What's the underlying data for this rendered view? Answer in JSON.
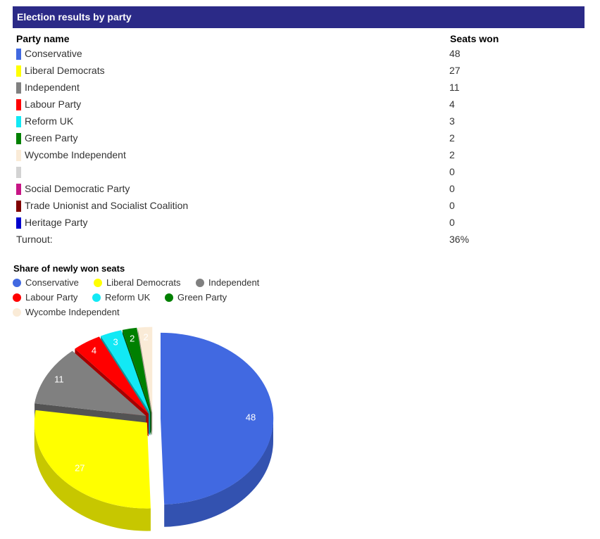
{
  "header": {
    "title": "Election results by party"
  },
  "table": {
    "col_party": "Party name",
    "col_seats": "Seats won",
    "rows": [
      {
        "name": "Conservative",
        "seats": "48",
        "color": "#4169e1"
      },
      {
        "name": "Liberal Democrats",
        "seats": "27",
        "color": "#ffff00"
      },
      {
        "name": "Independent",
        "seats": "11",
        "color": "#808080"
      },
      {
        "name": "Labour Party",
        "seats": "4",
        "color": "#ff0000"
      },
      {
        "name": "Reform UK",
        "seats": "3",
        "color": "#12e9f5"
      },
      {
        "name": "Green Party",
        "seats": "2",
        "color": "#008000"
      },
      {
        "name": "Wycombe Independent",
        "seats": "2",
        "color": "#faebd7"
      },
      {
        "name": "",
        "seats": "0",
        "color": "#d3d3d3"
      },
      {
        "name": "Social Democratic Party",
        "seats": "0",
        "color": "#c71585"
      },
      {
        "name": "Trade Unionist and Socialist Coalition",
        "seats": "0",
        "color": "#800000"
      },
      {
        "name": "Heritage Party",
        "seats": "0",
        "color": "#0000cd"
      }
    ],
    "turnout_label": "Turnout:",
    "turnout_value": "36%"
  },
  "chart_data": {
    "type": "pie",
    "title": "Share of newly won seats",
    "categories": [
      "Conservative",
      "Liberal Democrats",
      "Independent",
      "Labour Party",
      "Reform UK",
      "Green Party",
      "Wycombe Independent"
    ],
    "values": [
      48,
      27,
      11,
      4,
      3,
      2,
      2
    ],
    "colors": [
      "#4169e1",
      "#ffff00",
      "#808080",
      "#ff0000",
      "#12e9f5",
      "#008000",
      "#faebd7"
    ],
    "legend_position": "top-left",
    "exploded": true,
    "style": "3d"
  }
}
